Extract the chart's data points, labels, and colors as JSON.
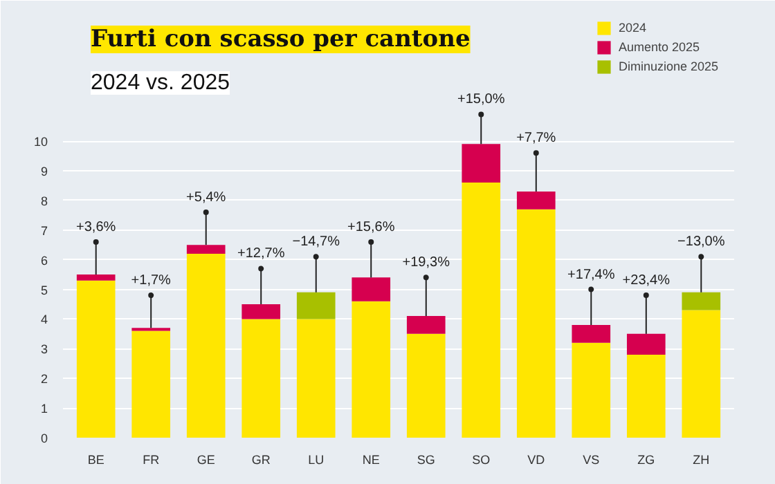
{
  "chart_data": {
    "type": "bar",
    "title": "Furti con scasso per cantone",
    "subtitle": "2024 vs. 2025",
    "stacked": true,
    "legend": "top right",
    "grid": "y",
    "categories": [
      "BE",
      "FR",
      "GE",
      "GR",
      "LU",
      "NE",
      "SG",
      "SO",
      "VD",
      "VS",
      "ZG",
      "ZH"
    ],
    "series": [
      {
        "name": "2024",
        "color": "#ffe600",
        "values": [
          5.3,
          3.6,
          6.2,
          4.0,
          4.0,
          4.6,
          3.5,
          8.6,
          7.7,
          3.2,
          2.8,
          4.3
        ]
      },
      {
        "name": "Aumento 2025",
        "color": "#d6004f",
        "values": [
          0.2,
          0.1,
          0.3,
          0.5,
          null,
          0.8,
          0.6,
          1.3,
          0.6,
          0.6,
          0.7,
          null
        ]
      },
      {
        "name": "Diminuzione 2025",
        "color": "#a8c000",
        "values": [
          null,
          null,
          null,
          null,
          0.9,
          null,
          null,
          null,
          null,
          null,
          null,
          0.6
        ]
      }
    ],
    "ylim": [
      0,
      14.5
    ],
    "yticks": [
      0,
      1,
      2,
      3,
      4,
      5,
      6,
      7,
      8,
      9,
      10
    ],
    "annotations": [
      {
        "text": "+3,6%",
        "x": "BE",
        "y": 6.6
      },
      {
        "text": "+1,7%",
        "x": "FR",
        "y": 4.8
      },
      {
        "text": "+5,4%",
        "x": "GE",
        "y": 7.6
      },
      {
        "text": "+12,7%",
        "x": "GR",
        "y": 5.7
      },
      {
        "text": "−14,7%",
        "x": "LU",
        "y": 6.1
      },
      {
        "text": "+15,6%",
        "x": "NE",
        "y": 6.6
      },
      {
        "text": "+19,3%",
        "x": "SG",
        "y": 5.4
      },
      {
        "text": "+15,0%",
        "x": "SO",
        "y": 10.9
      },
      {
        "text": "+7,7%",
        "x": "VD",
        "y": 9.6
      },
      {
        "text": "+17,4%",
        "x": "VS",
        "y": 5.0
      },
      {
        "text": "+23,4%",
        "x": "ZG",
        "y": 4.8
      },
      {
        "text": "−13,0%",
        "x": "ZH",
        "y": 6.1
      }
    ]
  }
}
